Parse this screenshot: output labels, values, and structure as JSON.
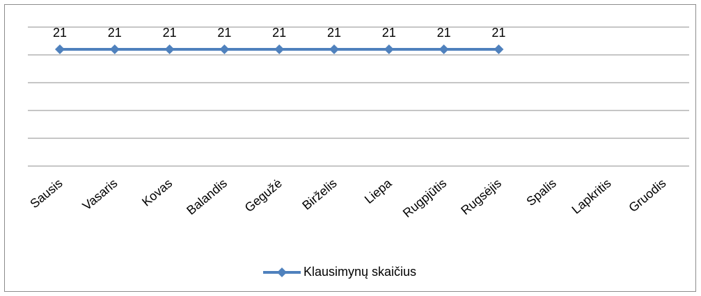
{
  "chart_data": {
    "type": "line",
    "categories": [
      "Sausis",
      "Vasaris",
      "Kovas",
      "Balandis",
      "Gegužė",
      "Birželis",
      "Liepa",
      "Rugpjūtis",
      "Rugsėjis",
      "Spalis",
      "Lapkritis",
      "Gruodis"
    ],
    "series": [
      {
        "name": "Klausimynų skaičius",
        "color": "#4f81bd",
        "values": [
          21,
          21,
          21,
          21,
          21,
          21,
          21,
          21,
          21,
          null,
          null,
          null
        ]
      }
    ],
    "ylim": [
      0,
      25
    ],
    "yticks": [
      0,
      5,
      10,
      15,
      20,
      25
    ],
    "grid": true,
    "legend": "bottom"
  }
}
